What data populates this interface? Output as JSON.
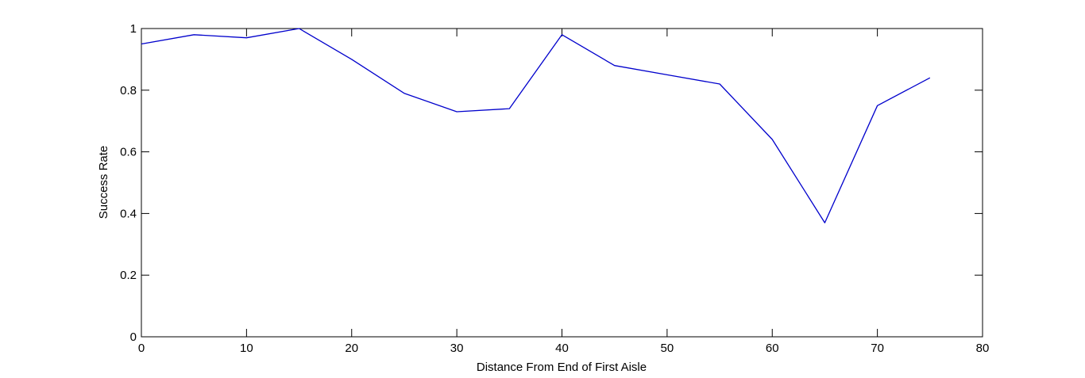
{
  "chart_data": {
    "type": "line",
    "title": "",
    "xlabel": "Distance From End of First Aisle",
    "ylabel": "Success Rate",
    "xlim": [
      0,
      80
    ],
    "ylim": [
      0,
      1
    ],
    "xticks": [
      0,
      10,
      20,
      30,
      40,
      50,
      60,
      70,
      80
    ],
    "yticks": [
      0,
      0.2,
      0.4,
      0.6,
      0.8,
      1
    ],
    "xtick_labels": [
      "0",
      "10",
      "20",
      "30",
      "40",
      "50",
      "60",
      "70",
      "80"
    ],
    "ytick_labels": [
      "0",
      "0.2",
      "0.4",
      "0.6",
      "0.8",
      "1"
    ],
    "grid": false,
    "series": [
      {
        "color": "#0000cc",
        "x": [
          0,
          5,
          10,
          15,
          20,
          25,
          30,
          35,
          40,
          45,
          50,
          55,
          60,
          65,
          70,
          75
        ],
        "y": [
          0.95,
          0.98,
          0.97,
          1.0,
          0.9,
          0.79,
          0.73,
          0.74,
          0.98,
          0.88,
          0.85,
          0.82,
          0.64,
          0.37,
          0.75,
          0.84
        ]
      }
    ]
  }
}
